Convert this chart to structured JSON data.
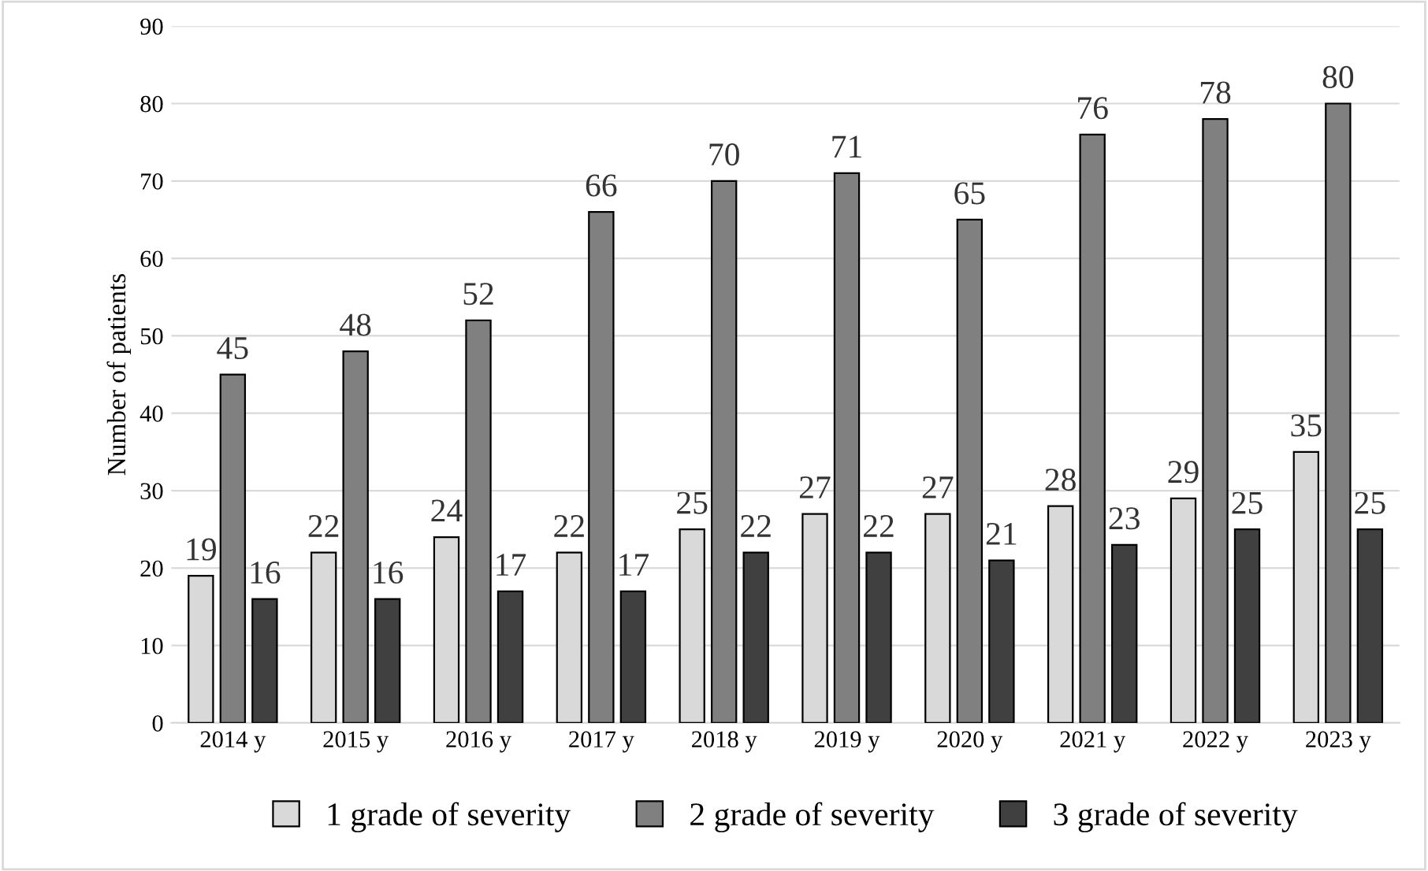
{
  "chart_data": {
    "type": "bar",
    "ylabel": "Number of patients",
    "categories": [
      "2014 y",
      "2015 y",
      "2016 y",
      "2017 y",
      "2018 y",
      "2019 y",
      "2020 y",
      "2021 y",
      "2022 y",
      "2023 y"
    ],
    "series": [
      {
        "name": "1 grade of severity",
        "color": "#d9d9d9",
        "values": [
          19,
          22,
          24,
          22,
          25,
          27,
          27,
          28,
          29,
          35
        ]
      },
      {
        "name": "2 grade of severity",
        "color": "#808080",
        "values": [
          45,
          48,
          52,
          66,
          70,
          71,
          65,
          76,
          78,
          80
        ]
      },
      {
        "name": "3 grade of severity",
        "color": "#404040",
        "values": [
          16,
          16,
          17,
          17,
          22,
          22,
          21,
          23,
          25,
          25
        ]
      }
    ],
    "ylim": [
      0,
      90
    ],
    "yticks": [
      0,
      10,
      20,
      30,
      40,
      50,
      60,
      70,
      80,
      90
    ],
    "grid": "y",
    "legend": "bottom",
    "data_labels": true
  }
}
